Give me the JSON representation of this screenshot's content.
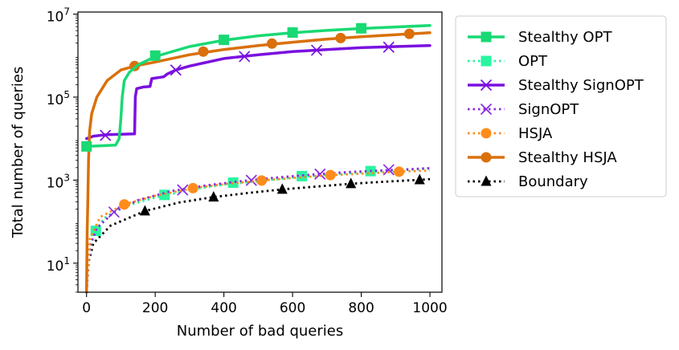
{
  "chart_data": {
    "type": "line",
    "title": "",
    "xlabel": "Number of bad queries",
    "ylabel": "Total number of queries",
    "xlim": [
      -25,
      1035
    ],
    "ylim_log10": [
      0.3,
      7.05
    ],
    "yscale": "log",
    "x_ticks": [
      {
        "value": 0,
        "label": "0"
      },
      {
        "value": 200,
        "label": "200"
      },
      {
        "value": 400,
        "label": "400"
      },
      {
        "value": 600,
        "label": "600"
      },
      {
        "value": 800,
        "label": "800"
      },
      {
        "value": 1000,
        "label": "1000"
      }
    ],
    "y_ticks": [
      {
        "value": 10,
        "base": "10",
        "exp": "1"
      },
      {
        "value": 1000,
        "base": "10",
        "exp": "3"
      },
      {
        "value": 100000,
        "base": "10",
        "exp": "5"
      },
      {
        "value": 10000000,
        "base": "10",
        "exp": "7"
      }
    ],
    "legend_position": "outside-right-top",
    "series": [
      {
        "name": "Stealthy OPT",
        "color": "#19d973",
        "line": "solid",
        "marker": "square",
        "curve": [
          [
            0,
            6500
          ],
          [
            85,
            7000
          ],
          [
            95,
            10000
          ],
          [
            100,
            30000
          ],
          [
            104,
            100000
          ],
          [
            110,
            250000
          ],
          [
            125,
            400000
          ],
          [
            150,
            600000
          ],
          [
            200,
            950000
          ],
          [
            300,
            1650000
          ],
          [
            400,
            2350000
          ],
          [
            500,
            3000000
          ],
          [
            600,
            3550000
          ],
          [
            700,
            4050000
          ],
          [
            800,
            4500000
          ],
          [
            900,
            4900000
          ],
          [
            1000,
            5300000
          ]
        ],
        "markers": [
          [
            0,
            6500
          ],
          [
            200,
            1000000
          ],
          [
            400,
            2400000
          ],
          [
            600,
            3600000
          ],
          [
            800,
            4550000
          ]
        ]
      },
      {
        "name": "OPT",
        "color": "#28f5a0",
        "line": "dotted",
        "marker": "square",
        "curve": [
          [
            0,
            2
          ],
          [
            5,
            10
          ],
          [
            15,
            35
          ],
          [
            27,
            60
          ],
          [
            50,
            120
          ],
          [
            100,
            220
          ],
          [
            200,
            380
          ],
          [
            300,
            580
          ],
          [
            400,
            780
          ],
          [
            500,
            950
          ],
          [
            600,
            1150
          ],
          [
            700,
            1350
          ],
          [
            800,
            1550
          ],
          [
            900,
            1700
          ],
          [
            1000,
            1900
          ]
        ],
        "markers": [
          [
            27,
            60
          ],
          [
            227,
            440
          ],
          [
            427,
            870
          ],
          [
            627,
            1250
          ],
          [
            827,
            1650
          ]
        ]
      },
      {
        "name": "Stealthy SignOPT",
        "color": "#7a10e0",
        "line": "solid",
        "marker": "x",
        "curve": [
          [
            0,
            10000
          ],
          [
            20,
            11500
          ],
          [
            60,
            12500
          ],
          [
            100,
            12800
          ],
          [
            140,
            13000
          ],
          [
            142,
            100000
          ],
          [
            146,
            160000
          ],
          [
            165,
            175000
          ],
          [
            185,
            180000
          ],
          [
            190,
            280000
          ],
          [
            215,
            300000
          ],
          [
            225,
            310000
          ],
          [
            235,
            360000
          ],
          [
            260,
            450000
          ],
          [
            300,
            560000
          ],
          [
            400,
            850000
          ],
          [
            500,
            1050000
          ],
          [
            600,
            1250000
          ],
          [
            700,
            1400000
          ],
          [
            800,
            1550000
          ],
          [
            900,
            1650000
          ],
          [
            1000,
            1750000
          ]
        ],
        "markers": [
          [
            55,
            12000
          ],
          [
            260,
            450000
          ],
          [
            460,
            950000
          ],
          [
            670,
            1350000
          ],
          [
            880,
            1600000
          ]
        ]
      },
      {
        "name": "SignOPT",
        "color": "#8a2be2",
        "line": "dotted",
        "marker": "x",
        "curve": [
          [
            0,
            2
          ],
          [
            10,
            25
          ],
          [
            30,
            70
          ],
          [
            80,
            170
          ],
          [
            150,
            330
          ],
          [
            250,
            550
          ],
          [
            350,
            750
          ],
          [
            450,
            950
          ],
          [
            550,
            1150
          ],
          [
            650,
            1350
          ],
          [
            750,
            1550
          ],
          [
            850,
            1700
          ],
          [
            950,
            1850
          ],
          [
            1000,
            1950
          ]
        ],
        "markers": [
          [
            80,
            170
          ],
          [
            280,
            580
          ],
          [
            480,
            990
          ],
          [
            680,
            1400
          ],
          [
            880,
            1780
          ]
        ]
      },
      {
        "name": "HSJA",
        "color": "#ff8c1a",
        "line": "dotted",
        "marker": "circle",
        "curve": [
          [
            0,
            2
          ],
          [
            10,
            40
          ],
          [
            40,
            130
          ],
          [
            110,
            260
          ],
          [
            200,
            420
          ],
          [
            310,
            640
          ],
          [
            410,
            820
          ],
          [
            510,
            980
          ],
          [
            610,
            1150
          ],
          [
            710,
            1320
          ],
          [
            810,
            1450
          ],
          [
            910,
            1600
          ],
          [
            1000,
            1700
          ]
        ],
        "markers": [
          [
            110,
            260
          ],
          [
            310,
            640
          ],
          [
            510,
            980
          ],
          [
            710,
            1320
          ],
          [
            910,
            1600
          ]
        ]
      },
      {
        "name": "Stealthy HSJA",
        "color": "#d9700a",
        "line": "solid",
        "marker": "circle",
        "curve": [
          [
            0,
            2
          ],
          [
            2,
            60
          ],
          [
            4,
            400
          ],
          [
            6,
            3000
          ],
          [
            9,
            15000
          ],
          [
            15,
            40000
          ],
          [
            30,
            100000
          ],
          [
            60,
            250000
          ],
          [
            100,
            450000
          ],
          [
            140,
            560000
          ],
          [
            200,
            700000
          ],
          [
            300,
            1050000
          ],
          [
            400,
            1400000
          ],
          [
            500,
            1750000
          ],
          [
            600,
            2100000
          ],
          [
            700,
            2500000
          ],
          [
            800,
            2850000
          ],
          [
            900,
            3200000
          ],
          [
            1000,
            3550000
          ]
        ],
        "markers": [
          [
            140,
            560000
          ],
          [
            340,
            1250000
          ],
          [
            540,
            1950000
          ],
          [
            740,
            2650000
          ],
          [
            940,
            3350000
          ]
        ]
      },
      {
        "name": "Boundary",
        "color": "#000000",
        "line": "dotted",
        "marker": "triangle",
        "curve": [
          [
            0,
            2
          ],
          [
            5,
            10
          ],
          [
            20,
            30
          ],
          [
            70,
            80
          ],
          [
            170,
            180
          ],
          [
            270,
            290
          ],
          [
            370,
            390
          ],
          [
            470,
            490
          ],
          [
            570,
            600
          ],
          [
            670,
            700
          ],
          [
            770,
            820
          ],
          [
            870,
            920
          ],
          [
            970,
            1020
          ],
          [
            1000,
            1060
          ]
        ],
        "markers": [
          [
            170,
            180
          ],
          [
            370,
            390
          ],
          [
            570,
            600
          ],
          [
            770,
            820
          ],
          [
            970,
            1020
          ]
        ]
      }
    ]
  }
}
